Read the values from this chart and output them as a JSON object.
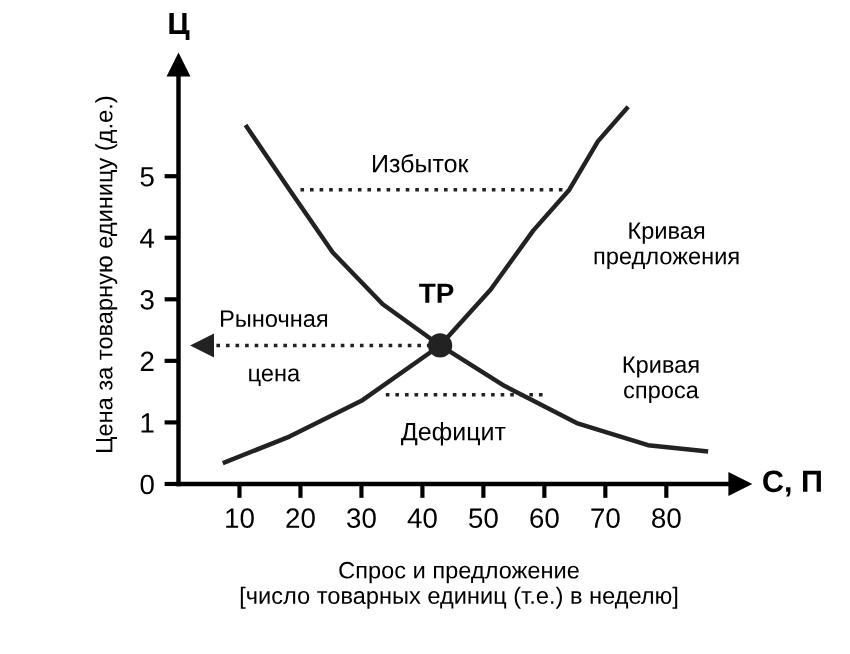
{
  "chart_data": {
    "type": "line",
    "xlabel": "Спрос и предложение\n[число товарных единиц (т.е.) в неделю]",
    "ylabel": "Цена за товарную единицу (д.е.)",
    "xlim": [
      0,
      92
    ],
    "ylim": [
      0,
      6.8
    ],
    "xticks": [
      10,
      20,
      30,
      40,
      50,
      60,
      70,
      80
    ],
    "yticks": [
      0,
      1,
      2,
      3,
      4,
      5
    ],
    "grid": false,
    "legend": false,
    "series": [
      {
        "color": "#222222",
        "line_style": "solid",
        "x": [
          7.6,
          18.2,
          30,
          42.9,
          51.2,
          58.2,
          64.1,
          68.8,
          73.5
        ],
        "values": [
          0.35,
          0.77,
          1.35,
          2.25,
          3.16,
          4.12,
          4.78,
          5.57,
          6.1
        ]
      },
      {
        "color": "#222222",
        "line_style": "solid",
        "x": [
          11.2,
          18.2,
          25.3,
          33.5,
          42.9,
          53.5,
          65.3,
          77,
          86.5
        ],
        "values": [
          5.8,
          4.78,
          3.76,
          2.92,
          2.25,
          1.59,
          0.99,
          0.63,
          0.53
        ]
      },
      {
        "type": "line",
        "color": "#222222",
        "line_style": "dotted",
        "x": [
          20,
          64
        ],
        "values": [
          4.78,
          4.78
        ]
      },
      {
        "type": "line",
        "color": "#222222",
        "line_style": "dotted",
        "x": [
          34,
          60
        ],
        "values": [
          1.45,
          1.45
        ]
      },
      {
        "type": "line",
        "color": "#222222",
        "line_style": "dotted",
        "marker": "triangle",
        "x": [
          42.9,
          4
        ],
        "values": [
          2.25,
          2.25
        ]
      },
      {
        "type": "scatter",
        "color": "#222222",
        "marker": "circle",
        "x": [
          42.9
        ],
        "values": [
          2.25
        ]
      }
    ],
    "annotations": [
      "Ц",
      "С, П",
      "Избыток",
      "Дефицит",
      "ТР",
      "Рыночная",
      "цена",
      "Кривая\nпредложения",
      "Кривая\nспроса"
    ]
  }
}
